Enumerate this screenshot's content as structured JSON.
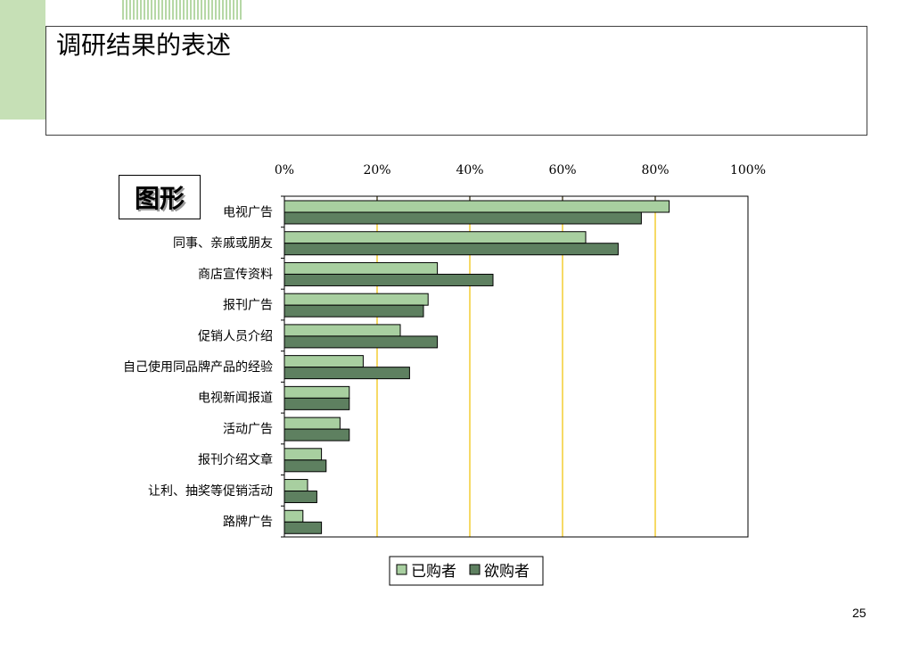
{
  "slide": {
    "title": "调研结果的表述",
    "label": "图形",
    "page_number": "25"
  },
  "colors": {
    "decoration": "#c6e0b6",
    "gridline": "#f0c000",
    "axis": "#000000"
  },
  "chart_data": {
    "type": "bar",
    "orientation": "horizontal",
    "categories": [
      "电视广告",
      "同事、亲戚或朋友",
      "商店宣传资料",
      "报刊广告",
      "促销人员介绍",
      "自己使用同品牌产品的经验",
      "电视新闻报道",
      "活动广告",
      "报刊介绍文章",
      "让利、抽奖等促销活动",
      "路牌广告"
    ],
    "series": [
      {
        "name": "已购者",
        "color": "#a8cfa0",
        "values": [
          83,
          65,
          33,
          31,
          25,
          17,
          14,
          12,
          8,
          5,
          4
        ]
      },
      {
        "name": "欲购者",
        "color": "#5e8060",
        "values": [
          77,
          72,
          45,
          30,
          33,
          27,
          14,
          14,
          9,
          7,
          8
        ]
      }
    ],
    "xlim": [
      0,
      100
    ],
    "x_ticks": [
      0,
      20,
      40,
      60,
      80,
      100
    ],
    "x_tick_labels": [
      "0%",
      "20%",
      "40%",
      "60%",
      "80%",
      "100%"
    ],
    "x_axis_position": "top",
    "grid": true,
    "legend": "bottom"
  }
}
